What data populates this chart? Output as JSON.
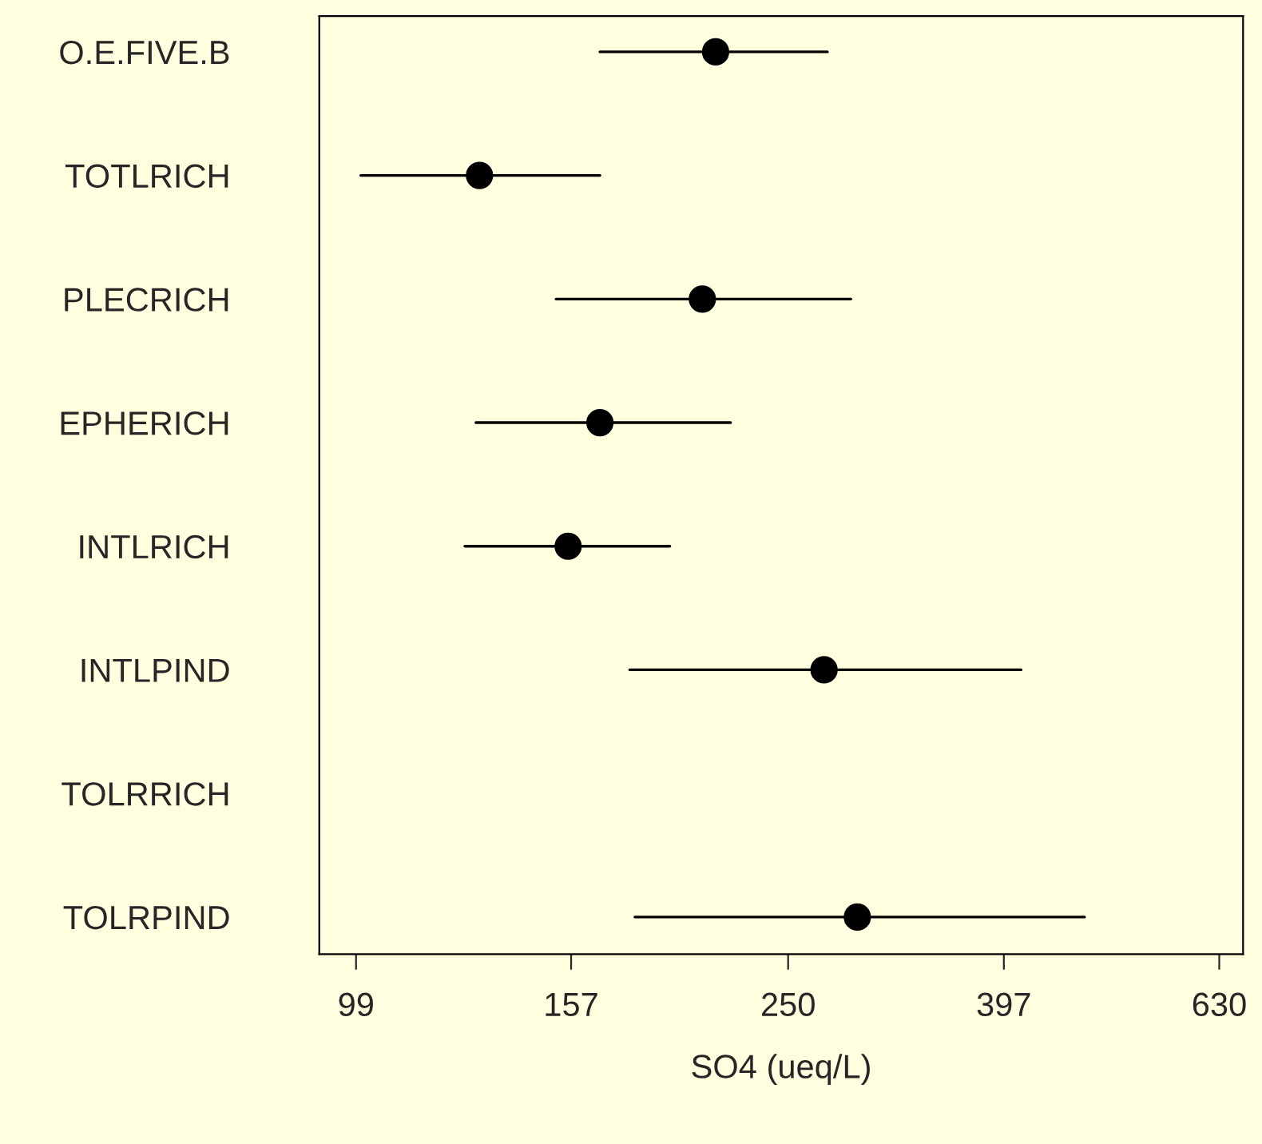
{
  "chart_data": {
    "type": "scatter",
    "orientation": "horizontal",
    "log": "x",
    "xlabel": "SO4 (ueq/L)",
    "categories": [
      "O.E.FIVE.B",
      "TOTLRICH",
      "PLECRICH",
      "EPHERICH",
      "INTLRICH",
      "INTLPIND",
      "TOLRRICH",
      "TOLRPIND"
    ],
    "values": [
      214,
      129,
      208,
      167,
      156,
      270,
      null,
      290
    ],
    "errors": [
      [
        167,
        272
      ],
      [
        100,
        167
      ],
      [
        152,
        286
      ],
      [
        128,
        221
      ],
      [
        125,
        194
      ],
      [
        178,
        412
      ],
      null,
      [
        180,
        472
      ]
    ],
    "color": "#000000",
    "marker": "circle",
    "xlim": [
      91.5,
      663
    ],
    "xticks": [
      99,
      157,
      250,
      397,
      630
    ],
    "grid": false
  }
}
